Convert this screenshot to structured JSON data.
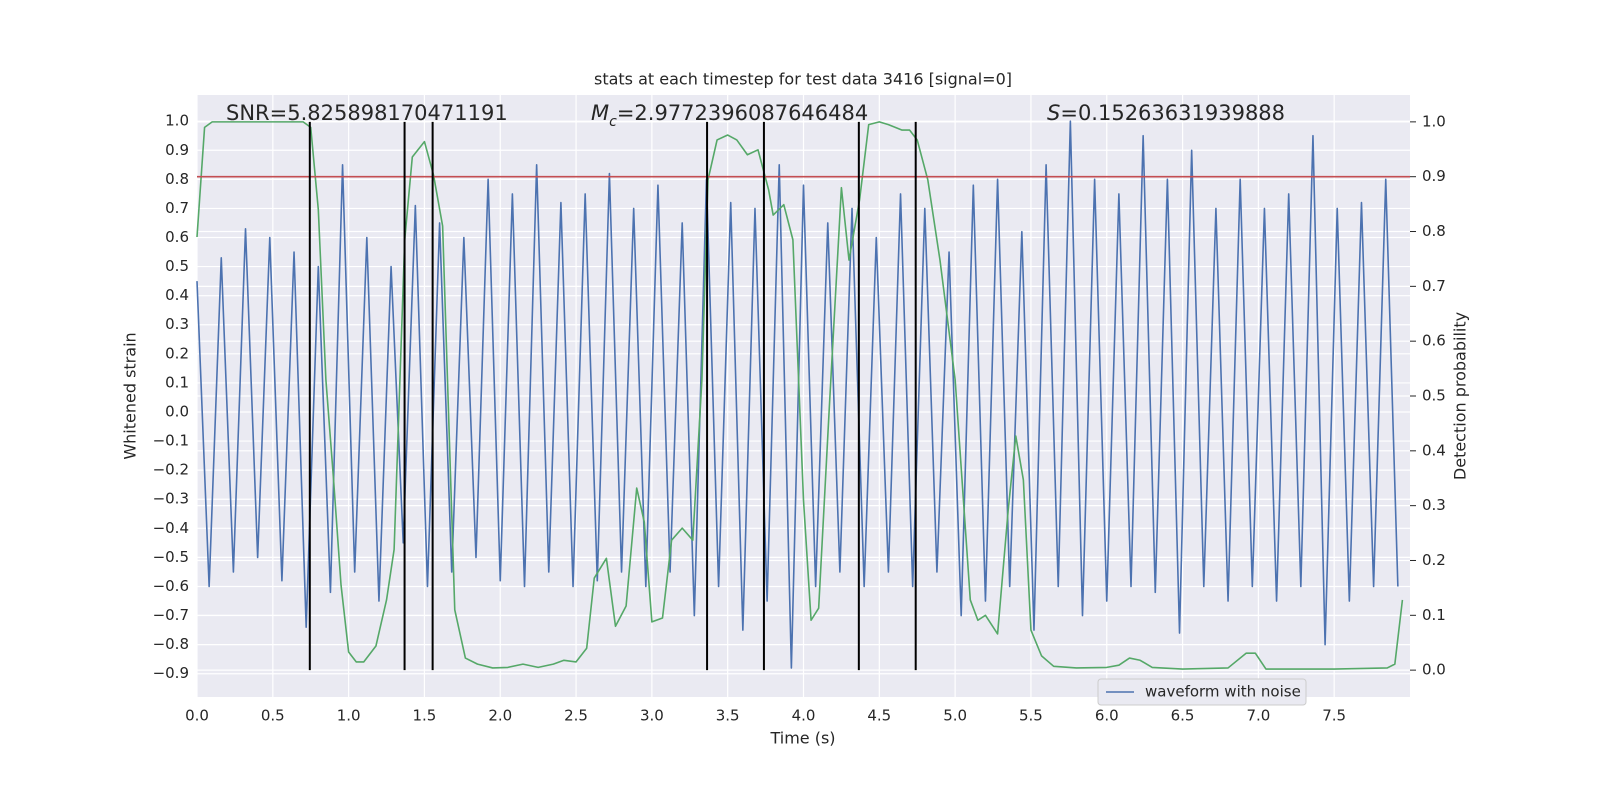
{
  "chart_data": {
    "type": "line",
    "title": "stats at each timestep for test data 3416 [signal=0]",
    "xlabel": "Time (s)",
    "ylabel": "Whitened strain",
    "y2label": "Detection probability",
    "annotations": [
      {
        "text": "SNR=5.825898170471191"
      },
      {
        "symbol": "M",
        "subscript": "c",
        "text": "=2.9772396087646484"
      },
      {
        "symbol": "S",
        "text": "=0.15263631939888"
      }
    ],
    "xlim": [
      0,
      8
    ],
    "ylim": [
      -0.98,
      1.09
    ],
    "y2lim": [
      -0.049,
      1.049
    ],
    "grid": true,
    "xticks": [
      {
        "value": 0,
        "label": "0.0"
      },
      {
        "value": 0.5,
        "label": "0.5"
      },
      {
        "value": 1,
        "label": "1.0"
      },
      {
        "value": 1.5,
        "label": "1.5"
      },
      {
        "value": 2,
        "label": "2.0"
      },
      {
        "value": 2.5,
        "label": "2.5"
      },
      {
        "value": 3,
        "label": "3.0"
      },
      {
        "value": 3.5,
        "label": "3.5"
      },
      {
        "value": 4,
        "label": "4.0"
      },
      {
        "value": 4.5,
        "label": "4.5"
      },
      {
        "value": 5,
        "label": "5.0"
      },
      {
        "value": 5.5,
        "label": "5.5"
      },
      {
        "value": 6,
        "label": "6.0"
      },
      {
        "value": 6.5,
        "label": "6.5"
      },
      {
        "value": 7,
        "label": "7.0"
      },
      {
        "value": 7.5,
        "label": "7.5"
      }
    ],
    "yticks": [
      {
        "value": -0.9,
        "label": "−0.9"
      },
      {
        "value": -0.8,
        "label": "−0.8"
      },
      {
        "value": -0.7,
        "label": "−0.7"
      },
      {
        "value": -0.6,
        "label": "−0.6"
      },
      {
        "value": -0.5,
        "label": "−0.5"
      },
      {
        "value": -0.4,
        "label": "−0.4"
      },
      {
        "value": -0.3,
        "label": "−0.3"
      },
      {
        "value": -0.2,
        "label": "−0.2"
      },
      {
        "value": -0.1,
        "label": "−0.1"
      },
      {
        "value": 0,
        "label": "0.0"
      },
      {
        "value": 0.1,
        "label": "0.1"
      },
      {
        "value": 0.2,
        "label": "0.2"
      },
      {
        "value": 0.3,
        "label": "0.3"
      },
      {
        "value": 0.4,
        "label": "0.4"
      },
      {
        "value": 0.5,
        "label": "0.5"
      },
      {
        "value": 0.6,
        "label": "0.6"
      },
      {
        "value": 0.7,
        "label": "0.7"
      },
      {
        "value": 0.8,
        "label": "0.8"
      },
      {
        "value": 0.9,
        "label": "0.9"
      },
      {
        "value": 1,
        "label": "1.0"
      }
    ],
    "y2ticks": [
      {
        "value": 0,
        "label": "0.0"
      },
      {
        "value": 0.1,
        "label": "0.1"
      },
      {
        "value": 0.2,
        "label": "0.2"
      },
      {
        "value": 0.3,
        "label": "0.3"
      },
      {
        "value": 0.4,
        "label": "0.4"
      },
      {
        "value": 0.5,
        "label": "0.5"
      },
      {
        "value": 0.6,
        "label": "0.6"
      },
      {
        "value": 0.7,
        "label": "0.7"
      },
      {
        "value": 0.8,
        "label": "0.8"
      },
      {
        "value": 0.9,
        "label": "0.9"
      },
      {
        "value": 1,
        "label": "1.0"
      }
    ],
    "series": [
      {
        "name": "waveform with noise",
        "color": "#4c72b0",
        "x": [
          0,
          0.08,
          0.16,
          0.24,
          0.32,
          0.4,
          0.48,
          0.56,
          0.64,
          0.72,
          0.8,
          0.88,
          0.96,
          1.04,
          1.12,
          1.2,
          1.28,
          1.36,
          1.44,
          1.52,
          1.6,
          1.68,
          1.76,
          1.84,
          1.92,
          2,
          2.08,
          2.16,
          2.24,
          2.32,
          2.4,
          2.48,
          2.56,
          2.64,
          2.72,
          2.8,
          2.88,
          2.96,
          3.04,
          3.12,
          3.2,
          3.28,
          3.36,
          3.44,
          3.52,
          3.6,
          3.68,
          3.76,
          3.84,
          3.92,
          4,
          4.08,
          4.16,
          4.24,
          4.32,
          4.4,
          4.48,
          4.56,
          4.64,
          4.72,
          4.8,
          4.88,
          4.96,
          5.04,
          5.12,
          5.2,
          5.28,
          5.36,
          5.44,
          5.52,
          5.6,
          5.68,
          5.76,
          5.84,
          5.92,
          6,
          6.08,
          6.16,
          6.24,
          6.32,
          6.4,
          6.48,
          6.56,
          6.64,
          6.72,
          6.8,
          6.88,
          6.96,
          7.04,
          7.12,
          7.2,
          7.28,
          7.36,
          7.44,
          7.52,
          7.6,
          7.68,
          7.76,
          7.84,
          7.92
        ],
        "values": [
          0.45,
          -0.6,
          0.53,
          -0.55,
          0.63,
          -0.5,
          0.6,
          -0.58,
          0.55,
          -0.74,
          0.5,
          -0.62,
          0.85,
          -0.55,
          0.6,
          -0.65,
          0.5,
          -0.45,
          0.71,
          -0.6,
          0.65,
          -0.55,
          0.6,
          -0.5,
          0.8,
          -0.58,
          0.75,
          -0.6,
          0.85,
          -0.55,
          0.72,
          -0.6,
          0.75,
          -0.58,
          0.82,
          -0.55,
          0.7,
          -0.6,
          0.78,
          -0.55,
          0.65,
          -0.7,
          0.8,
          -0.6,
          0.72,
          -0.75,
          0.7,
          -0.65,
          0.85,
          -0.88,
          0.78,
          -0.6,
          0.65,
          -0.55,
          0.7,
          -0.6,
          0.6,
          -0.55,
          0.75,
          -0.6,
          0.7,
          -0.55,
          0.55,
          -0.7,
          0.78,
          -0.65,
          0.8,
          -0.6,
          0.62,
          -0.75,
          0.85,
          -0.6,
          1.0,
          -0.7,
          0.8,
          -0.65,
          0.75,
          -0.6,
          0.95,
          -0.62,
          0.8,
          -0.76,
          0.9,
          -0.6,
          0.7,
          -0.65,
          0.8,
          -0.6,
          0.7,
          -0.65,
          0.75,
          -0.6,
          0.95,
          -0.8,
          0.7,
          -0.65,
          0.72,
          -0.6,
          0.8,
          -0.6
        ]
      },
      {
        "color": "#55a868",
        "axis": "y2",
        "x": [
          0,
          0.05,
          0.1,
          0.2,
          0.3,
          0.4,
          0.5,
          0.6,
          0.7,
          0.75,
          0.8,
          0.85,
          0.9,
          0.95,
          1.0,
          1.05,
          1.1,
          1.18,
          1.25,
          1.3,
          1.37,
          1.42,
          1.5,
          1.56,
          1.62,
          1.7,
          1.77,
          1.85,
          1.95,
          2.05,
          2.15,
          2.25,
          2.35,
          2.42,
          2.5,
          2.57,
          2.62,
          2.7,
          2.76,
          2.83,
          2.9,
          2.95,
          3.0,
          3.07,
          3.13,
          3.2,
          3.27,
          3.33,
          3.37,
          3.43,
          3.5,
          3.56,
          3.63,
          3.7,
          3.77,
          3.8,
          3.87,
          3.93,
          4.0,
          4.05,
          4.1,
          4.17,
          4.25,
          4.3,
          4.37,
          4.43,
          4.5,
          4.56,
          4.65,
          4.7,
          4.75,
          4.82,
          4.9,
          5.0,
          5.1,
          5.15,
          5.2,
          5.28,
          5.35,
          5.4,
          5.45,
          5.5,
          5.57,
          5.65,
          5.8,
          6.0,
          6.08,
          6.15,
          6.22,
          6.3,
          6.5,
          6.8,
          6.92,
          6.98,
          7.05,
          7.5,
          7.85,
          7.9,
          7.95
        ],
        "values": [
          0.79,
          0.99,
          1.0,
          1.0,
          1.0,
          1.0,
          1.0,
          1.0,
          1.0,
          0.99,
          0.84,
          0.53,
          0.35,
          0.155,
          0.033,
          0.015,
          0.015,
          0.044,
          0.128,
          0.22,
          0.785,
          0.936,
          0.964,
          0.903,
          0.81,
          0.11,
          0.022,
          0.011,
          0.004,
          0.005,
          0.011,
          0.005,
          0.011,
          0.018,
          0.015,
          0.04,
          0.168,
          0.204,
          0.08,
          0.117,
          0.332,
          0.27,
          0.088,
          0.095,
          0.237,
          0.259,
          0.237,
          0.53,
          0.894,
          0.967,
          0.976,
          0.967,
          0.94,
          0.949,
          0.876,
          0.83,
          0.849,
          0.785,
          0.31,
          0.091,
          0.113,
          0.478,
          0.88,
          0.748,
          0.858,
          0.995,
          1.0,
          0.995,
          0.985,
          0.985,
          0.967,
          0.894,
          0.748,
          0.53,
          0.128,
          0.091,
          0.1,
          0.066,
          0.292,
          0.427,
          0.347,
          0.073,
          0.026,
          0.007,
          0.004,
          0.005,
          0.009,
          0.022,
          0.018,
          0.005,
          0.002,
          0.004,
          0.031,
          0.031,
          0.002,
          0.002,
          0.004,
          0.011,
          0.128
        ]
      }
    ],
    "hlines": [
      {
        "value": 0.9,
        "axis": "y2",
        "color": "#c44e52"
      }
    ],
    "vlines": {
      "x": [
        0.744,
        1.369,
        1.554,
        3.364,
        3.739,
        4.365,
        4.74
      ],
      "span": [
        0,
        1
      ],
      "axis": "y2",
      "color": "#000000"
    }
  }
}
